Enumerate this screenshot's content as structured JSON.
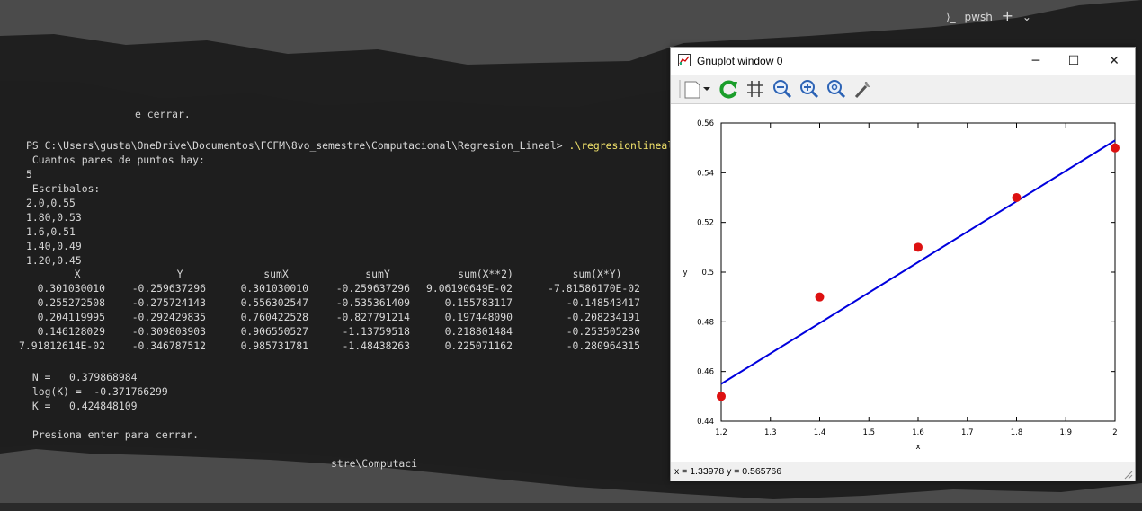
{
  "top_tabs": {
    "shell": "pwsh",
    "add": "+",
    "dropdown": "⌄"
  },
  "terminal": {
    "partial_top": "e cerrar.",
    "prompt": "PS C:\\Users\\gusta\\OneDrive\\Documentos\\FCFM\\8vo_semestre\\Computacional\\Regresion_Lineal>",
    "command": ".\\regresionlineallo",
    "lines": [
      " Cuantos pares de puntos hay:",
      "5",
      " Escribalos:",
      "2.0,0.55",
      "1.80,0.53",
      "1.6,0.51",
      "1.40,0.49",
      "1.20,0.45"
    ],
    "table_headers": [
      "X",
      "Y",
      "sumX",
      "sumY",
      "sum(X**2)",
      "sum(X*Y)"
    ],
    "table_rows": [
      [
        "0.301030010",
        "-0.259637296",
        "0.301030010",
        "-0.259637296",
        "9.06190649E-02",
        "-7.81586170E-02"
      ],
      [
        "0.255272508",
        "-0.275724143",
        "0.556302547",
        "-0.535361409",
        "0.155783117",
        "-0.148543417"
      ],
      [
        "0.204119995",
        "-0.292429835",
        "0.760422528",
        "-0.827791214",
        "0.197448090",
        "-0.208234191"
      ],
      [
        "0.146128029",
        "-0.309803903",
        "0.906550527",
        "-1.13759518",
        "0.218801484",
        "-0.253505230"
      ],
      [
        "7.91812614E-02",
        "-0.346787512",
        "0.985731781",
        "-1.48438263",
        "0.225071162",
        "-0.280964315"
      ]
    ],
    "results": [
      " N =   0.379868984",
      " log(K) =  -0.371766299",
      " K =   0.424848109"
    ],
    "press_enter": " Presiona enter para cerrar.",
    "partial_bottom": "stre\\Computaci"
  },
  "gnuplot": {
    "title": "Gnuplot window 0",
    "toolbar_icons": [
      "options-icon",
      "replot-icon",
      "grid-icon",
      "zoom-out-icon",
      "zoom-in-icon",
      "zoom-reset-icon",
      "settings-wrench-icon"
    ],
    "status": "x = 1.33978 y = 0.565766"
  },
  "chart_data": {
    "type": "scatter",
    "xlabel": "x",
    "ylabel": "y",
    "xlim": [
      1.2,
      2.0
    ],
    "ylim": [
      0.44,
      0.56
    ],
    "x_ticks": [
      "1.2",
      "1.3",
      "1.4",
      "1.5",
      "1.6",
      "1.7",
      "1.8",
      "1.9",
      "2"
    ],
    "y_ticks": [
      "0.44",
      "0.46",
      "0.48",
      "0.5",
      "0.52",
      "0.54",
      "0.56"
    ],
    "points": {
      "x": [
        1.2,
        1.4,
        1.6,
        1.8,
        2.0
      ],
      "y": [
        0.45,
        0.49,
        0.51,
        0.53,
        0.55
      ],
      "color": "#dd1111"
    },
    "fit_line": {
      "x": [
        1.2,
        2.0
      ],
      "y": [
        0.455,
        0.553
      ],
      "color": "#0000dd"
    }
  }
}
